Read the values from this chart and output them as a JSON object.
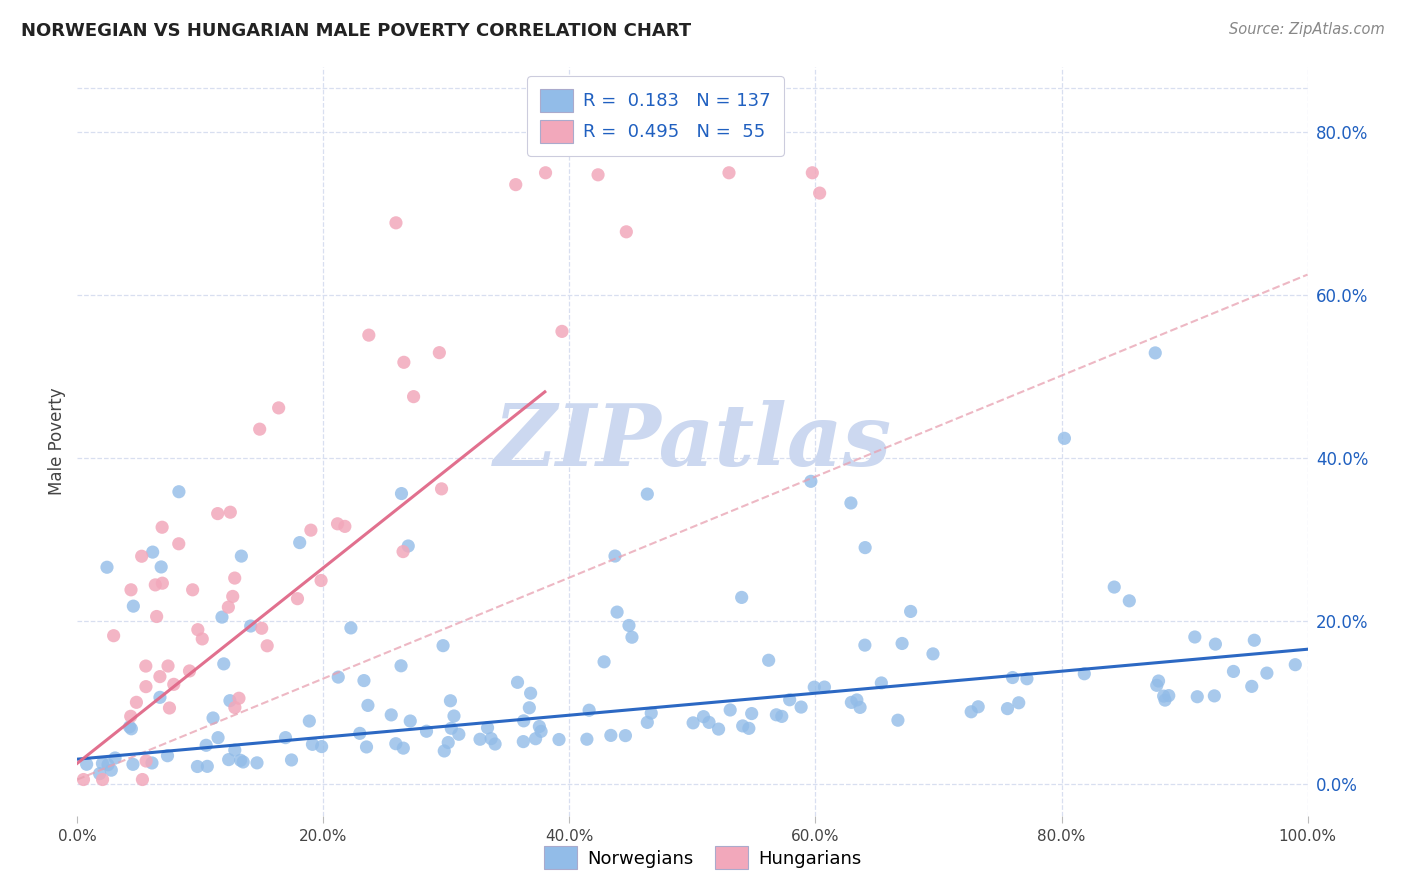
{
  "title": "NORWEGIAN VS HUNGARIAN MALE POVERTY CORRELATION CHART",
  "source": "Source: ZipAtlas.com",
  "ylabel": "Male Poverty",
  "xlim": [
    0.0,
    1.0
  ],
  "ylim": [
    -0.04,
    0.88
  ],
  "ytick_values": [
    0.0,
    0.2,
    0.4,
    0.6,
    0.8
  ],
  "xtick_values": [
    0.0,
    0.2,
    0.4,
    0.6,
    0.8,
    1.0
  ],
  "legend_r_norwegian": "0.183",
  "legend_n_norwegian": "137",
  "legend_r_hungarian": "0.495",
  "legend_n_hungarian": "55",
  "norwegian_color": "#92bce8",
  "hungarian_color": "#f2a8bb",
  "norwegian_line_color": "#2060c0",
  "hungarian_line_color": "#e06888",
  "hungarian_trend_color": "#e8a0b0",
  "background_color": "#ffffff",
  "grid_color": "#d8dff0",
  "watermark": "ZIPatlas",
  "watermark_color": "#ccd8f0",
  "title_color": "#222222",
  "source_color": "#888888",
  "tick_label_color": "#444444",
  "right_tick_color": "#2060c0"
}
